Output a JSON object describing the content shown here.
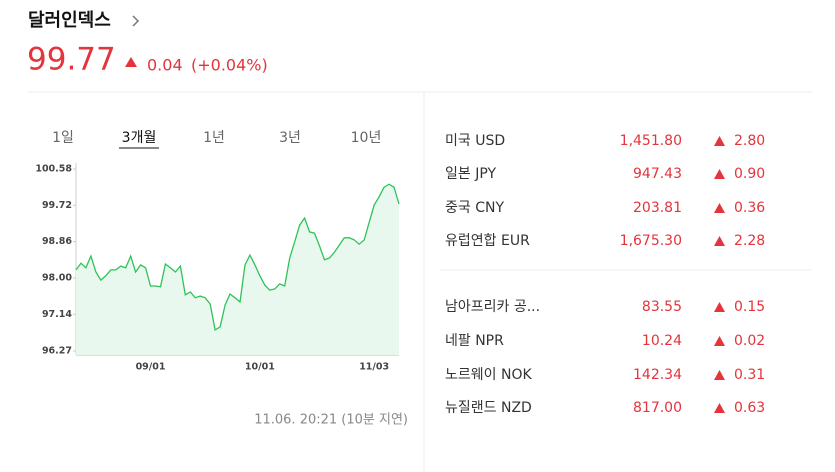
{
  "header": {
    "title": "달러인덱스",
    "price": "99.77",
    "change": "0.04",
    "change_pct": "(+0.04%)"
  },
  "tabs": [
    "1일",
    "3개월",
    "1년",
    "3년",
    "10년"
  ],
  "chart_data": {
    "type": "line",
    "categories": [
      null,
      null,
      null,
      null,
      null,
      null,
      null,
      null,
      null,
      null,
      null,
      null,
      null,
      null,
      null,
      "09/01",
      null,
      null,
      null,
      null,
      null,
      null,
      null,
      null,
      null,
      null,
      null,
      null,
      null,
      null,
      null,
      null,
      null,
      null,
      null,
      null,
      null,
      "10/01",
      null,
      null,
      null,
      null,
      null,
      null,
      null,
      null,
      null,
      null,
      null,
      null,
      null,
      null,
      null,
      null,
      null,
      null,
      null,
      null,
      null,
      null,
      "11/03",
      null,
      null,
      null,
      null,
      null
    ],
    "values": [
      98.19,
      98.35,
      98.24,
      98.52,
      98.14,
      97.95,
      98.05,
      98.19,
      98.19,
      98.28,
      98.24,
      98.52,
      98.14,
      98.31,
      98.24,
      97.81,
      97.81,
      97.79,
      98.33,
      98.24,
      98.14,
      98.28,
      97.6,
      97.67,
      97.53,
      97.57,
      97.53,
      97.38,
      96.77,
      96.84,
      97.36,
      97.62,
      97.53,
      97.43,
      98.31,
      98.54,
      98.31,
      98.05,
      97.83,
      97.71,
      97.74,
      97.86,
      97.81,
      98.47,
      98.85,
      99.25,
      99.42,
      99.09,
      99.06,
      98.76,
      98.43,
      98.47,
      98.61,
      98.78,
      98.95,
      98.95,
      98.9,
      98.8,
      98.9,
      99.32,
      99.73,
      99.92,
      100.15,
      100.22,
      100.15,
      99.75
    ],
    "color": "#2fc25b",
    "ylim": [
      96.27,
      100.58
    ],
    "yticks": [
      100.58,
      99.72,
      98.86,
      {
        "value": 98,
        "label": "98.00"
      },
      97.14,
      96.27
    ]
  },
  "timestamp": "11.06. 20:21 (10분 지연)",
  "table": {
    "groups": [
      [
        [
          "미국 USD",
          "1,451.80",
          "2.80"
        ],
        [
          "일본 JPY",
          "947.43",
          "0.90"
        ],
        [
          "중국 CNY",
          "203.81",
          "0.36"
        ],
        [
          "유럽연합 EUR",
          "1,675.30",
          "2.28"
        ]
      ],
      [
        [
          "남아프리카 공...",
          "83.55",
          "0.15"
        ],
        [
          "네팔 NPR",
          "10.24",
          "0.02"
        ],
        [
          "노르웨이 NOK",
          "142.34",
          "0.31"
        ],
        [
          "뉴질랜드 NZD",
          "817.00",
          "0.63"
        ]
      ]
    ]
  }
}
